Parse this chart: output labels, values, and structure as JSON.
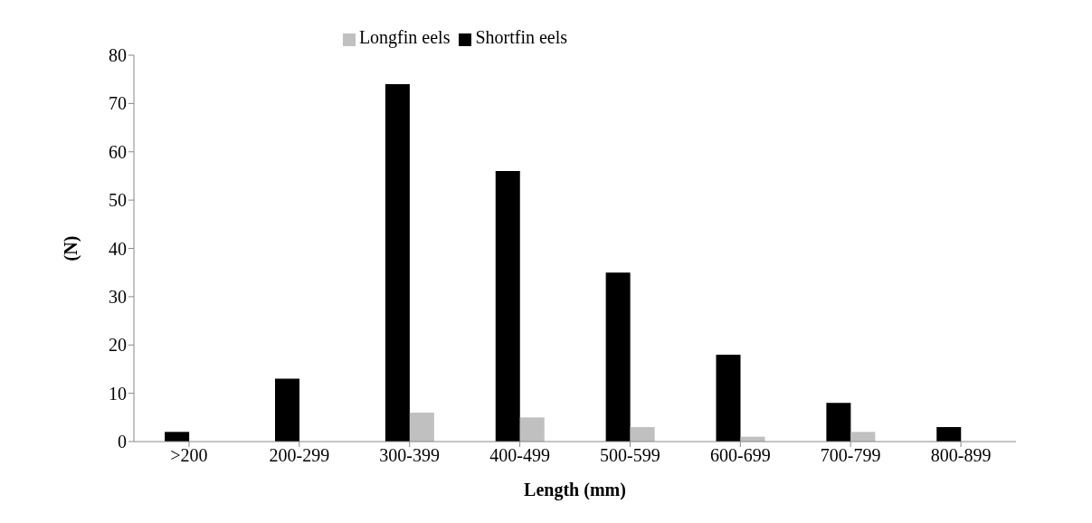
{
  "chart_data": {
    "type": "bar",
    "xlabel": "Length (mm)",
    "ylabel": "(N)",
    "categories": [
      ">200",
      "200-299",
      "300-399",
      "400-499",
      "500-599",
      "600-699",
      "700-799",
      "800-899"
    ],
    "series": [
      {
        "name": "Shortfin eels",
        "color": "#000000",
        "values": [
          2,
          13,
          74,
          56,
          35,
          18,
          8,
          3
        ]
      },
      {
        "name": "Longfin eels",
        "color": "#c0c0c0",
        "values": [
          0,
          0,
          6,
          5,
          3,
          1,
          2,
          0
        ]
      }
    ],
    "ylim": [
      0,
      80
    ],
    "yticks": [
      0,
      10,
      20,
      30,
      40,
      50,
      60,
      70,
      80
    ],
    "grid": false,
    "legend": "top"
  }
}
